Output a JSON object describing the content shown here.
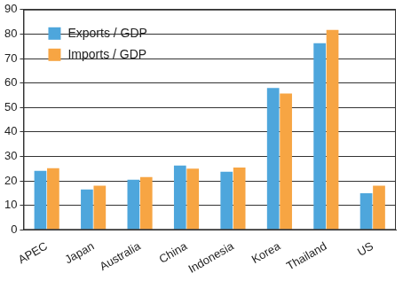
{
  "chart_data": {
    "type": "bar",
    "categories": [
      "APEC",
      "Japan",
      "Australia",
      "China",
      "Indonesia",
      "Korea",
      "Thailand",
      "US"
    ],
    "series": [
      {
        "name": "Exports / GDP",
        "color": "#4ea6dc",
        "values": [
          24.1,
          16.5,
          20.5,
          26.3,
          23.7,
          58.0,
          76.3,
          15.0
        ]
      },
      {
        "name": "Imports / GDP",
        "color": "#f7a543",
        "values": [
          25.2,
          18.0,
          21.6,
          25.0,
          25.5,
          55.7,
          81.7,
          18.0
        ]
      }
    ],
    "ylim": [
      0,
      90
    ],
    "yticks": [
      0,
      10,
      20,
      30,
      40,
      50,
      60,
      70,
      80,
      90
    ],
    "grid": true,
    "legend": "upper left"
  }
}
